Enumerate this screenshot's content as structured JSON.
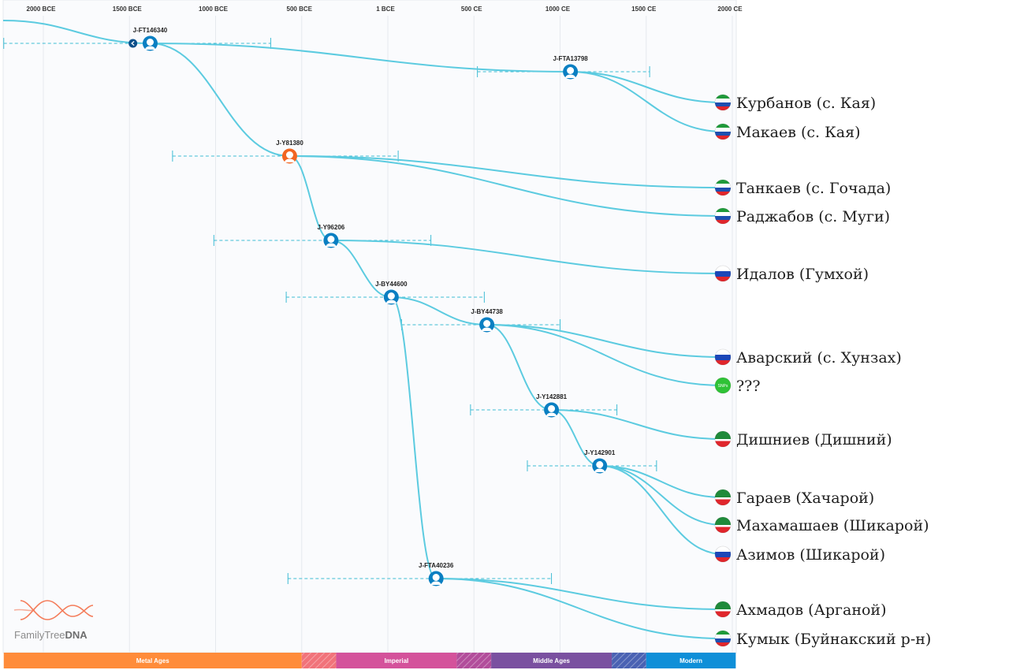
{
  "axis": {
    "ticks": [
      {
        "label": "2000 BCE",
        "year": -2000
      },
      {
        "label": "1500 BCE",
        "year": -1500
      },
      {
        "label": "1000 BCE",
        "year": -1000
      },
      {
        "label": "500 BCE",
        "year": -500
      },
      {
        "label": "1 BCE",
        "year": 0
      },
      {
        "label": "500 CE",
        "year": 500
      },
      {
        "label": "1000 CE",
        "year": 1000
      },
      {
        "label": "1500 CE",
        "year": 1500
      },
      {
        "label": "2000 CE",
        "year": 2000
      }
    ]
  },
  "eras": [
    {
      "label": "Metal Ages",
      "start": -2230,
      "end": -500,
      "color": "#ff8c3a"
    },
    {
      "label": "",
      "start": -500,
      "end": -300,
      "color": "#f1737a",
      "hatched": true
    },
    {
      "label": "Imperial",
      "start": -300,
      "end": 400,
      "color": "#d4529b"
    },
    {
      "label": "",
      "start": 400,
      "end": 600,
      "color": "#b24d9b",
      "hatched": true
    },
    {
      "label": "Middle Ages",
      "start": 600,
      "end": 1300,
      "color": "#7a50a0"
    },
    {
      "label": "",
      "start": 1300,
      "end": 1500,
      "color": "#4a62b3",
      "hatched": true
    },
    {
      "label": "Modern",
      "start": 1500,
      "end": 2020,
      "color": "#0f8fd8"
    }
  ],
  "root": {
    "year": -1500
  },
  "nodes": [
    {
      "id": "J-FT146340",
      "label": "J-FT146340",
      "year": -1380,
      "ci": [
        -2230,
        -680
      ],
      "parent": "root",
      "color": "#0a7fc2"
    },
    {
      "id": "J-FTA13798",
      "label": "J-FTA13798",
      "year": 1060,
      "ci": [
        520,
        1520
      ],
      "parent": "J-FT146340",
      "color": "#0a7fc2"
    },
    {
      "id": "J-Y81380",
      "label": "J-Y81380",
      "year": -570,
      "ci": [
        -1250,
        60
      ],
      "parent": "J-FT146340",
      "color": "#f26522"
    },
    {
      "id": "J-Y96206",
      "label": "J-Y96206",
      "year": -330,
      "ci": [
        -1010,
        250
      ],
      "parent": "J-Y81380",
      "color": "#0a7fc2"
    },
    {
      "id": "J-BY44600",
      "label": "J-BY44600",
      "year": 20,
      "ci": [
        -590,
        560
      ],
      "parent": "J-Y96206",
      "color": "#0a7fc2"
    },
    {
      "id": "J-BY44738",
      "label": "J-BY44738",
      "year": 575,
      "ci": [
        80,
        1000
      ],
      "parent": "J-BY44600",
      "color": "#0a7fc2"
    },
    {
      "id": "J-Y142881",
      "label": "J-Y142881",
      "year": 950,
      "ci": [
        480,
        1330
      ],
      "parent": "J-BY44738",
      "color": "#0a7fc2"
    },
    {
      "id": "J-Y142901",
      "label": "J-Y142901",
      "year": 1230,
      "ci": [
        810,
        1560
      ],
      "parent": "J-Y142881",
      "color": "#0a7fc2"
    },
    {
      "id": "J-FTA40236",
      "label": "J-FTA40236",
      "year": 280,
      "ci": [
        -580,
        950
      ],
      "parent": "J-BY44600",
      "color": "#0a7fc2"
    }
  ],
  "leaves": [
    {
      "label": "Курбанов (с. Кая)",
      "parent": "J-FTA13798",
      "flag": "dagestan"
    },
    {
      "label": "Макаев (с. Кая)",
      "parent": "J-FTA13798",
      "flag": "dagestan"
    },
    {
      "label": "Танкаев (с. Гочада)",
      "parent": "J-Y81380",
      "flag": "dagestan"
    },
    {
      "label": "Раджабов (с. Муги)",
      "parent": "J-Y81380",
      "flag": "dagestan"
    },
    {
      "label": "Идалов (Гумхой)",
      "parent": "J-Y96206",
      "flag": "russia"
    },
    {
      "label": "Аварский (с. Хунзах)",
      "parent": "J-BY44738",
      "flag": "russia"
    },
    {
      "label": "???",
      "parent": "J-BY44738",
      "flag": "unknown",
      "badge": "SNPs"
    },
    {
      "label": "Дишниев (Дишний)",
      "parent": "J-Y142881",
      "flag": "chechnya"
    },
    {
      "label": "Гараев (Хачарой)",
      "parent": "J-Y142901",
      "flag": "chechnya"
    },
    {
      "label": "Махамашаев (Шикарой)",
      "parent": "J-Y142901",
      "flag": "chechnya"
    },
    {
      "label": "Азимов (Шикарой)",
      "parent": "J-Y142901",
      "flag": "russia"
    },
    {
      "label": "Ахмадов (Арганой)",
      "parent": "J-FTA40236",
      "flag": "chechnya"
    },
    {
      "label": "Кумык (Буйнакский р-н)",
      "parent": "J-FTA40236",
      "flag": "dagestan"
    }
  ],
  "logo": {
    "text_light": "FamilyTree",
    "text_bold": "DNA"
  },
  "colors": {
    "branch": "#5ccbe0",
    "ci": "#3fbcd4",
    "grid": "#e6e9ee",
    "panel": "#fafbfd"
  }
}
